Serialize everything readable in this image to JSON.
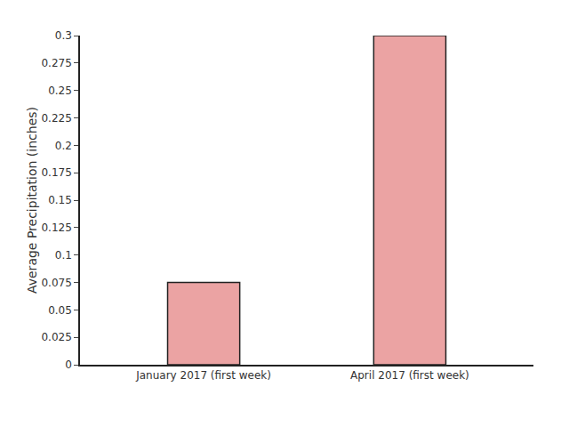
{
  "chart_data": {
    "type": "bar",
    "y_label": "Average Precipitation (inches)",
    "categories": [
      "January 2017 (first week)",
      "April 2017 (first week)"
    ],
    "values": [
      0.075,
      0.3
    ],
    "color": "#eba3a3",
    "ylim": [
      0,
      0.3
    ],
    "yticks": [
      0,
      0.025,
      0.05,
      0.075,
      0.1,
      0.125,
      0.15,
      0.175,
      0.2,
      0.225,
      0.25,
      0.275,
      0.3
    ],
    "grid": false
  }
}
